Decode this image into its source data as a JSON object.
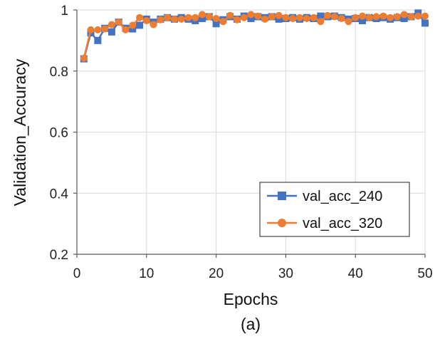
{
  "chart_data": {
    "type": "line",
    "xlabel": "Epochs",
    "ylabel": "Validation_Accuracy",
    "caption": "(a)",
    "xlim": [
      0,
      50
    ],
    "ylim": [
      0.2,
      1.0
    ],
    "xticks": [
      0,
      10,
      20,
      30,
      40,
      50
    ],
    "yticks": [
      0.2,
      0.4,
      0.6,
      0.8,
      1.0
    ],
    "xtick_labels": [
      "0",
      "10",
      "20",
      "30",
      "40",
      "50"
    ],
    "ytick_labels": [
      "0.2",
      "0.4",
      "0.6",
      "0.8",
      "1"
    ],
    "grid": true,
    "legend_position": "bottom-right",
    "x": [
      1,
      2,
      3,
      4,
      5,
      6,
      7,
      8,
      9,
      10,
      11,
      12,
      13,
      14,
      15,
      16,
      17,
      18,
      19,
      20,
      21,
      22,
      23,
      24,
      25,
      26,
      27,
      28,
      29,
      30,
      31,
      32,
      33,
      34,
      35,
      36,
      37,
      38,
      39,
      40,
      41,
      42,
      43,
      44,
      45,
      46,
      47,
      48,
      49,
      50
    ],
    "series": [
      {
        "name": "val_acc_240",
        "color": "#4472C4",
        "marker": "square",
        "values": [
          0.84,
          0.925,
          0.9,
          0.94,
          0.928,
          0.96,
          0.94,
          0.938,
          0.95,
          0.97,
          0.96,
          0.97,
          0.975,
          0.97,
          0.975,
          0.97,
          0.965,
          0.972,
          0.978,
          0.955,
          0.968,
          0.978,
          0.97,
          0.98,
          0.972,
          0.978,
          0.975,
          0.978,
          0.97,
          0.972,
          0.975,
          0.97,
          0.975,
          0.972,
          0.98,
          0.978,
          0.98,
          0.975,
          0.97,
          0.972,
          0.965,
          0.975,
          0.972,
          0.975,
          0.97,
          0.975,
          0.972,
          0.978,
          0.99,
          0.957
        ]
      },
      {
        "name": "val_acc_320",
        "color": "#ED7D31",
        "marker": "circle",
        "values": [
          0.842,
          0.935,
          0.935,
          0.938,
          0.952,
          0.96,
          0.935,
          0.95,
          0.975,
          0.965,
          0.952,
          0.968,
          0.975,
          0.97,
          0.97,
          0.975,
          0.975,
          0.985,
          0.978,
          0.972,
          0.962,
          0.982,
          0.968,
          0.975,
          0.985,
          0.98,
          0.97,
          0.978,
          0.982,
          0.975,
          0.972,
          0.975,
          0.972,
          0.975,
          0.962,
          0.982,
          0.978,
          0.972,
          0.962,
          0.975,
          0.98,
          0.975,
          0.978,
          0.98,
          0.975,
          0.978,
          0.985,
          0.978,
          0.98,
          0.98
        ]
      }
    ]
  }
}
